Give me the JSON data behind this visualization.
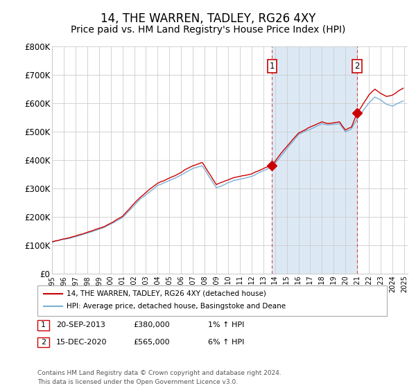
{
  "title": "14, THE WARREN, TADLEY, RG26 4XY",
  "subtitle": "Price paid vs. HM Land Registry's House Price Index (HPI)",
  "ylim": [
    0,
    800000
  ],
  "yticks": [
    0,
    100000,
    200000,
    300000,
    400000,
    500000,
    600000,
    700000,
    800000
  ],
  "ytick_labels": [
    "£0",
    "£100K",
    "£200K",
    "£300K",
    "£400K",
    "£500K",
    "£600K",
    "£700K",
    "£800K"
  ],
  "hpi_color": "#7bafd4",
  "hpi_fill_color": "#dce9f5",
  "price_color": "#cc0000",
  "highlight_color": "#dce9f5",
  "sale1_year": 2013.75,
  "sale2_year": 2021.0,
  "sale1_price": 380000,
  "sale2_price": 565000,
  "legend_line1": "14, THE WARREN, TADLEY, RG26 4XY (detached house)",
  "legend_line2": "HPI: Average price, detached house, Basingstoke and Deane",
  "footnote": "Contains HM Land Registry data © Crown copyright and database right 2024.\nThis data is licensed under the Open Government Licence v3.0.",
  "background_color": "#ffffff",
  "plot_bg_color": "#ffffff",
  "grid_color": "#cccccc",
  "title_fontsize": 12,
  "subtitle_fontsize": 10,
  "tick_fontsize": 8.5
}
